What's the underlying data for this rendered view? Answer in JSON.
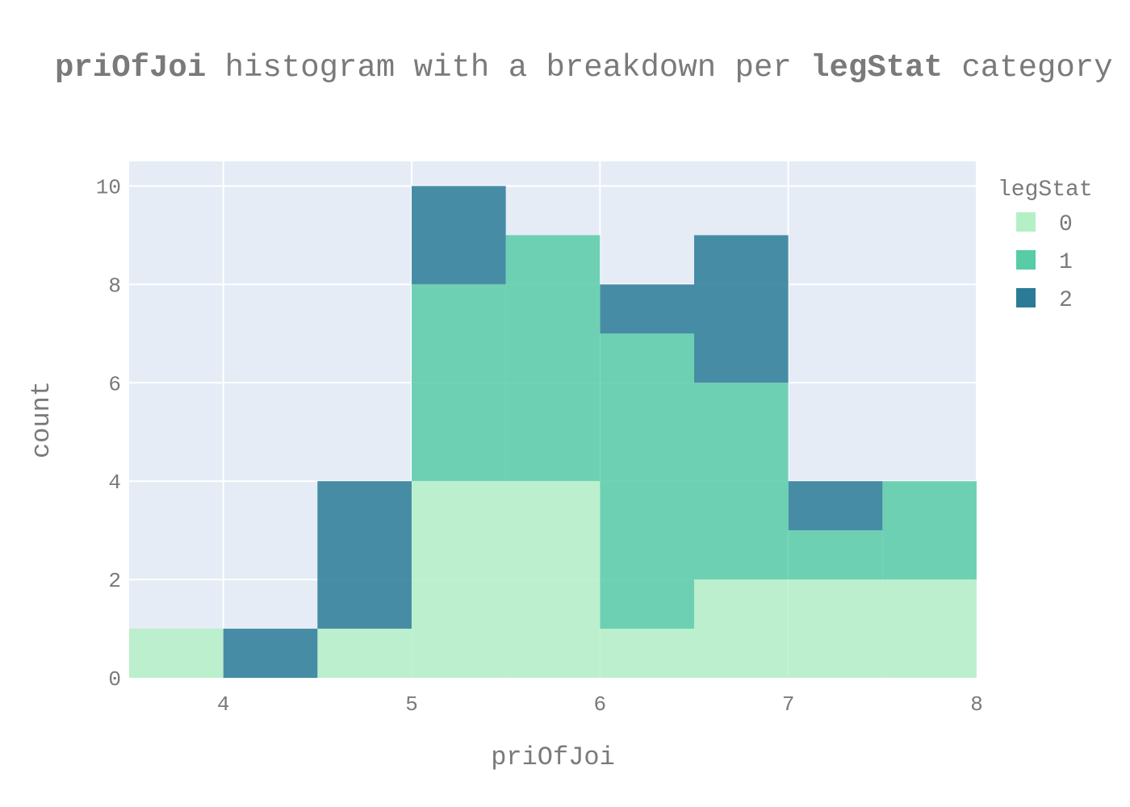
{
  "title": {
    "bold_1": "priOfJoi",
    "text_1": " histogram with a breakdown per ",
    "bold_2": "legStat",
    "text_2": " category"
  },
  "chart_data": {
    "type": "bar",
    "stacked": true,
    "xlabel": "priOfJoi",
    "ylabel": "count",
    "xlim": [
      3.5,
      8
    ],
    "ylim": [
      0,
      10.5
    ],
    "x_ticks": [
      4,
      5,
      6,
      7,
      8
    ],
    "y_ticks": [
      0,
      2,
      4,
      6,
      8,
      10
    ],
    "grid": true,
    "bin_width": 0.5,
    "bin_starts": [
      3.5,
      4,
      4.5,
      5,
      5.5,
      6,
      6.5,
      7,
      7.5
    ],
    "legend": {
      "title": "legStat",
      "placement": "top-right"
    },
    "series": [
      {
        "name": "0",
        "color": "#b4f0c6",
        "values": [
          1,
          0,
          1,
          4,
          4,
          1,
          2,
          2,
          2
        ]
      },
      {
        "name": "1",
        "color": "#58cba7",
        "values": [
          0,
          0,
          0,
          4,
          5,
          6,
          4,
          1,
          2
        ]
      },
      {
        "name": "2",
        "color": "#2b7b97",
        "values": [
          0,
          1,
          3,
          2,
          0,
          1,
          3,
          1,
          0
        ]
      }
    ],
    "colors": {
      "plot_bg": "#e5ecf6",
      "grid": "#ffffff",
      "text": "#7a7a7a"
    }
  }
}
